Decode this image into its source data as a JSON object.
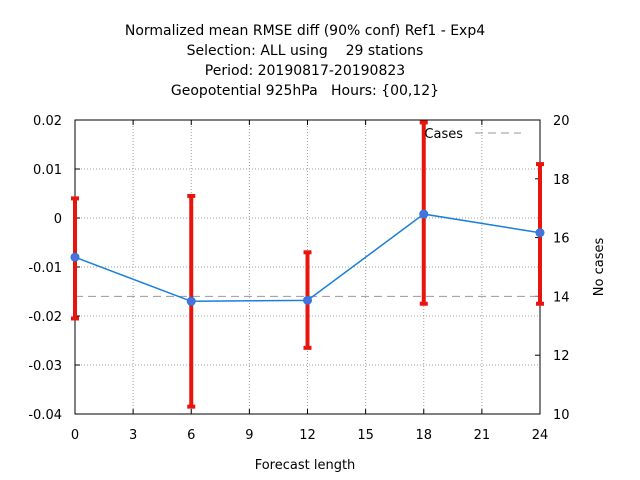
{
  "chart_data": {
    "type": "line",
    "title": [
      "Normalized mean RMSE diff (90% conf) Ref1 - Exp4",
      "Selection: ALL using    29 stations",
      "Period: 20190817-20190823",
      "Geopotential 925hPa   Hours: {00,12}"
    ],
    "xlabel": "Forecast length",
    "ylabel": "",
    "y2label": "No cases",
    "x": [
      0,
      6,
      12,
      18,
      24
    ],
    "xlim": [
      0,
      24
    ],
    "xticks": [
      0,
      3,
      6,
      9,
      12,
      15,
      18,
      21,
      24
    ],
    "ylim": [
      -0.04,
      0.02
    ],
    "yticks": [
      "0.02",
      "0.01",
      "0",
      "-0.01",
      "-0.02",
      "-0.03",
      "-0.04"
    ],
    "y2lim": [
      10,
      20
    ],
    "y2ticks": [
      20,
      18,
      16,
      14,
      12,
      10
    ],
    "grid": true,
    "legend_position": "top-right",
    "series": [
      {
        "kind": "line-with-errorbars",
        "color": "#1a7fd9",
        "marker_color": "#4d6fe0",
        "values": [
          -0.008,
          -0.017,
          -0.0168,
          0.0008,
          -0.003
        ],
        "error_low": [
          -0.0205,
          -0.0385,
          -0.0265,
          -0.0175,
          -0.0175
        ],
        "error_high": [
          0.004,
          0.0045,
          -0.007,
          0.0195,
          0.011
        ],
        "error_color": "#e8150f"
      },
      {
        "name": "Cases",
        "kind": "dashed-line",
        "axis": "y2",
        "color": "#999999",
        "values": [
          14,
          14,
          14,
          14,
          14
        ]
      }
    ]
  }
}
